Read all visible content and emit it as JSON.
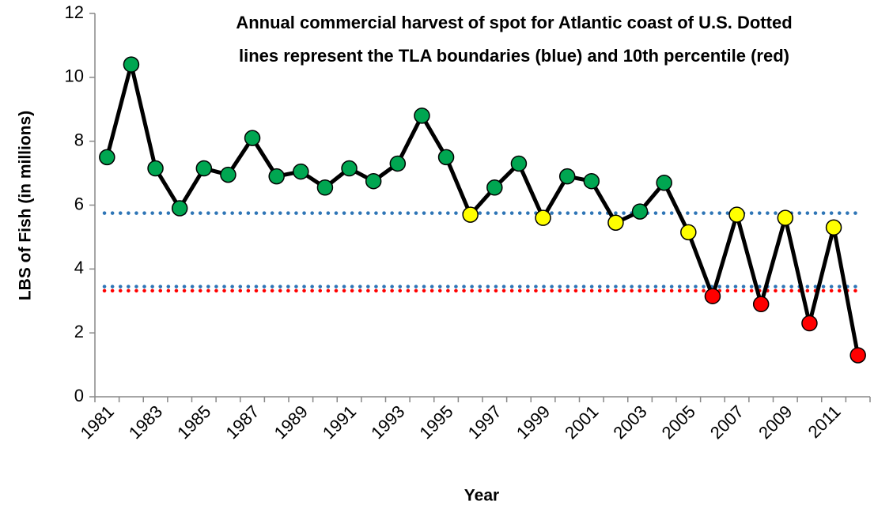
{
  "chart_data": {
    "type": "line",
    "title": [
      "Annual commercial  harvest of spot for Atlantic coast  of U.S.  Dotted",
      "lines represent the TLA boundaries  (blue) and 10th percentile (red)"
    ],
    "x_label": "Year",
    "y_label": "LBS of Fish  (in millions)",
    "categories": [
      "1981",
      null,
      "1983",
      null,
      "1985",
      null,
      "1987",
      null,
      "1989",
      null,
      "1991",
      null,
      "1993",
      null,
      "1995",
      null,
      "1997",
      null,
      "1999",
      null,
      "2001",
      null,
      "2003",
      null,
      "2005",
      null,
      "2007",
      null,
      "2009",
      null,
      "2011",
      null
    ],
    "series": [
      {
        "color": "#000000",
        "values": [
          7.5,
          10.4,
          7.15,
          5.9,
          7.15,
          6.95,
          8.1,
          6.9,
          7.05,
          6.55,
          7.15,
          6.75,
          7.3,
          8.8,
          7.5,
          5.7,
          6.55,
          7.3,
          5.6,
          6.9,
          6.75,
          5.45,
          5.8,
          6.7,
          5.15,
          3.15,
          5.7,
          2.9,
          5.6,
          2.3,
          5.3,
          1.3
        ],
        "marker_colors": [
          "#00a651",
          "#00a651",
          "#00a651",
          "#00a651",
          "#00a651",
          "#00a651",
          "#00a651",
          "#00a651",
          "#00a651",
          "#00a651",
          "#00a651",
          "#00a651",
          "#00a651",
          "#00a651",
          "#00a651",
          "#ffff00",
          "#00a651",
          "#00a651",
          "#ffff00",
          "#00a651",
          "#00a651",
          "#ffff00",
          "#00a651",
          "#00a651",
          "#ffff00",
          "#ff0000",
          "#ffff00",
          "#ff0000",
          "#ffff00",
          "#ff0000",
          "#ffff00",
          "#ff0000"
        ]
      }
    ],
    "reference_lines": [
      {
        "value": 5.75,
        "color": "#2e75b6"
      },
      {
        "value": 3.45,
        "color": "#2e75b6"
      },
      {
        "value": 3.32,
        "color": "#ff0000"
      }
    ],
    "ylim": [
      0,
      12
    ],
    "yticks": [
      0,
      2,
      4,
      6,
      8,
      10,
      12
    ]
  }
}
